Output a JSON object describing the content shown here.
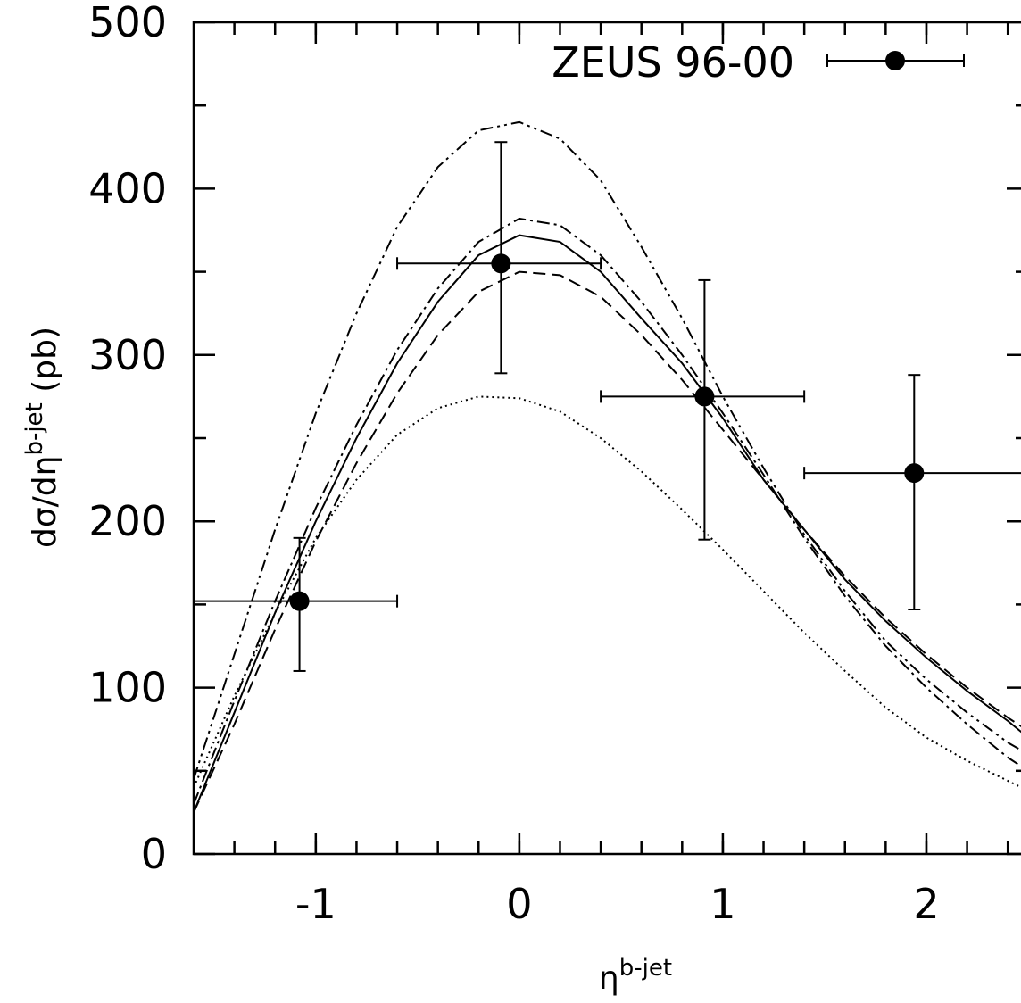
{
  "chart_data": {
    "type": "scatter",
    "xlabel": [
      "η",
      "b-jet"
    ],
    "ylabel": [
      "dσ/dη",
      "b-jet",
      " (pb)"
    ],
    "xlim": [
      -1.6,
      2.5
    ],
    "ylim": [
      0,
      500
    ],
    "xticks": [
      -1,
      0,
      1,
      2
    ],
    "yticks": [
      0,
      100,
      200,
      300,
      400,
      500
    ],
    "xminorticks": [
      -1.4,
      -1.2,
      -1.0,
      -0.8,
      -0.6,
      -0.4,
      -0.2,
      0,
      0.2,
      0.4,
      0.6,
      0.8,
      1.0,
      1.2,
      1.4,
      1.6,
      1.8,
      2.0,
      2.2,
      2.4
    ],
    "yminorticks": [
      50,
      150,
      250,
      350,
      450
    ],
    "legend": "upper right",
    "series": [
      {
        "name": "ZEUS 96-00",
        "color": "#000000",
        "x": [
          -1.08,
          -0.09,
          0.91,
          1.94
        ],
        "x_low": [
          -1.6,
          -0.6,
          0.4,
          1.4
        ],
        "x_high": [
          -0.6,
          0.4,
          1.4,
          2.5
        ],
        "y": [
          152,
          355,
          275,
          229
        ],
        "y_low": [
          110,
          289,
          189,
          147
        ],
        "y_high": [
          190,
          428,
          345,
          288
        ]
      }
    ],
    "curve_x": [
      -1.6,
      -1.4,
      -1.2,
      -1.0,
      -0.8,
      -0.6,
      -0.4,
      -0.2,
      0,
      0.2,
      0.4,
      0.6,
      0.8,
      1.0,
      1.2,
      1.4,
      1.6,
      1.8,
      2.0,
      2.2,
      2.4,
      2.5
    ],
    "curves": [
      {
        "color": "#000000",
        "dash": "solid",
        "values": [
          25,
          85,
          145,
          200,
          250,
          295,
          332,
          360,
          372,
          368,
          350,
          322,
          295,
          262,
          225,
          195,
          165,
          140,
          118,
          98,
          80,
          70
        ]
      },
      {
        "color": "#000000",
        "dash": "dashdot",
        "values": [
          30,
          92,
          152,
          208,
          258,
          303,
          340,
          368,
          382,
          378,
          360,
          332,
          300,
          265,
          228,
          190,
          155,
          125,
          100,
          78,
          58,
          50
        ]
      },
      {
        "color": "#000000",
        "dash": "dashed",
        "values": [
          25,
          78,
          135,
          188,
          235,
          277,
          312,
          338,
          350,
          348,
          335,
          312,
          285,
          255,
          225,
          195,
          167,
          142,
          120,
          100,
          82,
          74
        ]
      },
      {
        "color": "#000000",
        "dash": "dashdotdot",
        "values": [
          45,
          120,
          195,
          265,
          325,
          377,
          413,
          435,
          440,
          430,
          405,
          365,
          322,
          275,
          232,
          192,
          158,
          128,
          105,
          85,
          67,
          60
        ]
      },
      {
        "color": "#000000",
        "dash": "dotted",
        "values": [
          40,
          95,
          145,
          190,
          225,
          252,
          268,
          275,
          274,
          266,
          250,
          230,
          207,
          183,
          158,
          133,
          110,
          88,
          70,
          56,
          44,
          38
        ]
      }
    ]
  }
}
